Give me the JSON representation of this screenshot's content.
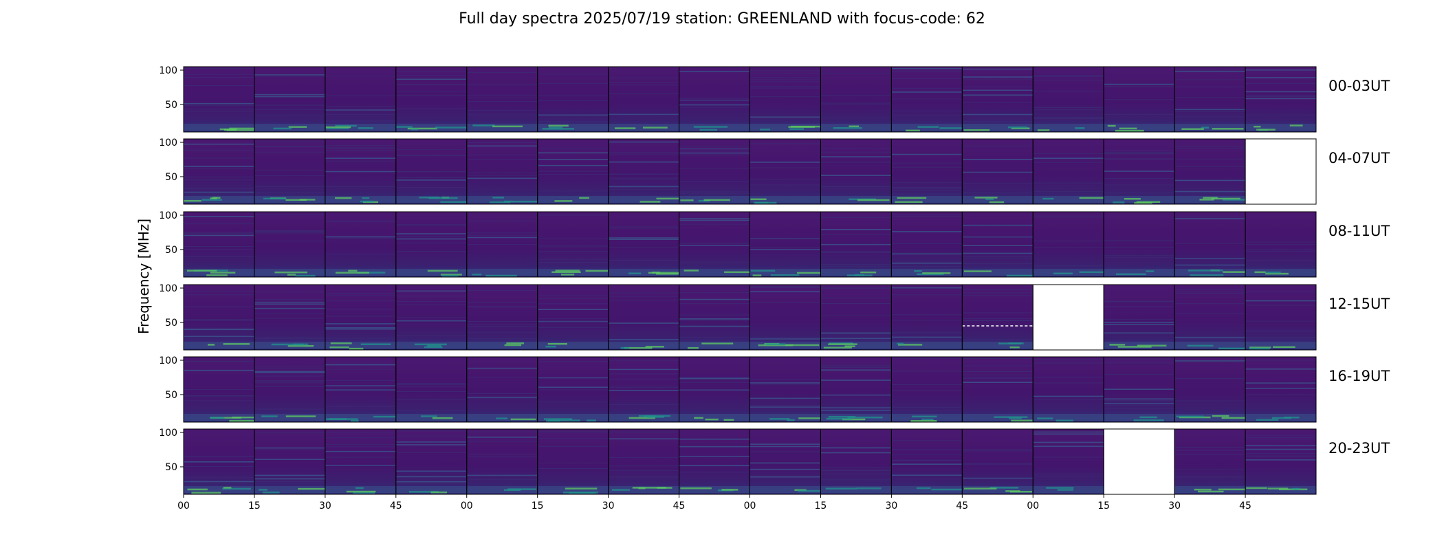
{
  "chart_data": {
    "type": "heatmap",
    "title": "Full day spectra 2025/07/19 station: GREENLAND with focus-code: 62",
    "ylabel": "Frequency [MHz]",
    "xlabel": "",
    "ylim": [
      10,
      105
    ],
    "y_ticks": [
      50,
      100
    ],
    "x_tick_labels": [
      "00",
      "15",
      "30",
      "45",
      "00",
      "15",
      "30",
      "45",
      "00",
      "15",
      "30",
      "45",
      "00",
      "15",
      "30",
      "45"
    ],
    "colormap": "viridis",
    "grid": false,
    "legend": "none",
    "row_labels": [
      "00-03UT",
      "04-07UT",
      "08-11UT",
      "12-15UT",
      "16-19UT",
      "20-23UT"
    ],
    "panels_per_row": 16,
    "panel_minutes": 15,
    "missing_panels": [
      {
        "row": 1,
        "col": 15
      },
      {
        "row": 3,
        "col": 12
      },
      {
        "row": 5,
        "col": 13
      }
    ],
    "partial_panels": [
      {
        "row": 3,
        "col": 11
      }
    ]
  },
  "colors": {
    "background": "#ffffff",
    "spectrum_base": "#46146e",
    "spectrum_mid": "#3b528b",
    "spectrum_bright": "#21918c",
    "spectrum_peak": "#5ec962",
    "panel_border": "#000000",
    "missing_panel_fill": "#ffffff"
  }
}
